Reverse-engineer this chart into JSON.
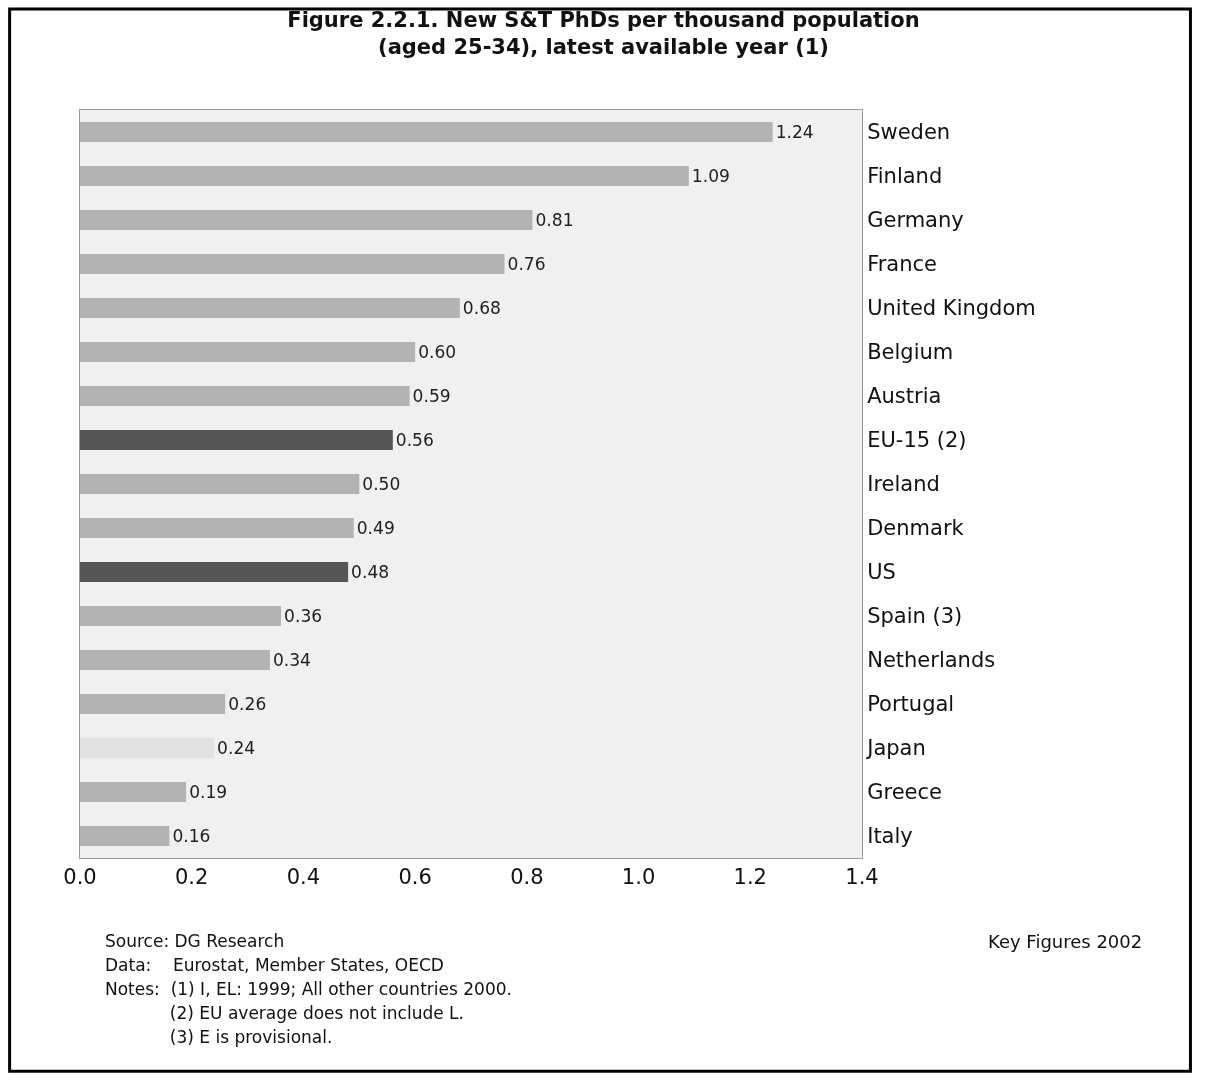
{
  "chart_data": {
    "type": "bar",
    "orientation": "horizontal",
    "title": "Figure 2.2.1. New S&T PhDs per thousand population\n(aged 25-34), latest available year (1)",
    "categories": [
      "Sweden",
      "Finland",
      "Germany",
      "France",
      "United Kingdom",
      "Belgium",
      "Austria",
      "EU-15 (2)",
      "Ireland",
      "Denmark",
      "US",
      "Spain (3)",
      "Netherlands",
      "Portugal",
      "Japan",
      "Greece",
      "Italy"
    ],
    "values": [
      1.24,
      1.09,
      0.81,
      0.76,
      0.68,
      0.6,
      0.59,
      0.56,
      0.5,
      0.49,
      0.48,
      0.36,
      0.34,
      0.26,
      0.24,
      0.19,
      0.16
    ],
    "value_labels": [
      "1.24",
      "1.09",
      "0.81",
      "0.76",
      "0.68",
      "0.60",
      "0.59",
      "0.56",
      "0.50",
      "0.49",
      "0.48",
      "0.36",
      "0.34",
      "0.26",
      "0.24",
      "0.19",
      "0.16"
    ],
    "colors": [
      "#b3b3b3",
      "#b3b3b3",
      "#b3b3b3",
      "#b3b3b3",
      "#b3b3b3",
      "#b3b3b3",
      "#b3b3b3",
      "#555555",
      "#b3b3b3",
      "#b3b3b3",
      "#555555",
      "#b3b3b3",
      "#b3b3b3",
      "#b3b3b3",
      "#e2e2e2",
      "#b3b3b3",
      "#b3b3b3"
    ],
    "xlim": [
      0,
      1.4
    ],
    "xticks": [
      {
        "value": 0,
        "label": "0.0"
      },
      0.2,
      0.4,
      0.6,
      0.8,
      {
        "value": 1,
        "label": "1.0"
      },
      1.2,
      1.4
    ],
    "grid": false,
    "legend": false,
    "annotations": [
      "Key Figures 2002",
      "Source: DG Research",
      "Data:    Eurostat, Member States, OECD",
      "Notes:  (1) I, EL: 1999; All other countries 2000.",
      "            (2) EU average does not include L.",
      "            (3) E is provisional."
    ]
  }
}
